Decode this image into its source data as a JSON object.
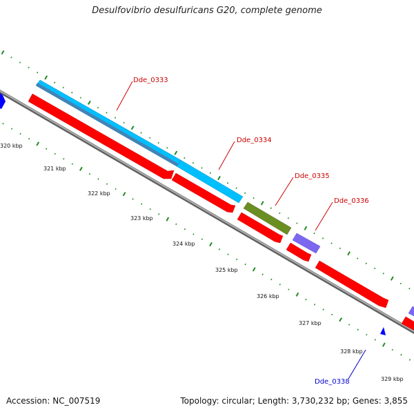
{
  "title": "Desulfovibrio desulfuricans G20, complete genome",
  "footer": {
    "accession": "Accession: NC_007519",
    "summary": "Topology: circular; Length: 3,730,232 bp; Genes: 3,855"
  },
  "colors": {
    "cds": "#ff0000",
    "gene_cyan": "#00c0ff",
    "gene_olive": "#6b8e23",
    "gene_purple": "#7b68ee",
    "small_blue": "#0000ff",
    "tick_green": "#1f8a1f",
    "backbone": "#808080",
    "label_red": "#cc0000",
    "label_blue": "#0000cc"
  },
  "ticks": [
    {
      "kbp": 320,
      "label": "320 kbp"
    },
    {
      "kbp": 321,
      "label": "321 kbp"
    },
    {
      "kbp": 322,
      "label": "322 kbp"
    },
    {
      "kbp": 323,
      "label": "323 kbp"
    },
    {
      "kbp": 324,
      "label": "324 kbp"
    },
    {
      "kbp": 325,
      "label": "325 kbp"
    },
    {
      "kbp": 326,
      "label": "326 kbp"
    },
    {
      "kbp": 327,
      "label": "327 kbp"
    },
    {
      "kbp": 328,
      "label": "328 kbp"
    },
    {
      "kbp": 329,
      "label": "329 kbp"
    }
  ],
  "genes": [
    {
      "name": "Dde_0333",
      "label_color": "#cc0000"
    },
    {
      "name": "Dde_0334",
      "label_color": "#cc0000"
    },
    {
      "name": "Dde_0335",
      "label_color": "#cc0000"
    },
    {
      "name": "Dde_0336",
      "label_color": "#cc0000"
    },
    {
      "name": "Dde_0338",
      "label_color": "#0000cc"
    }
  ]
}
